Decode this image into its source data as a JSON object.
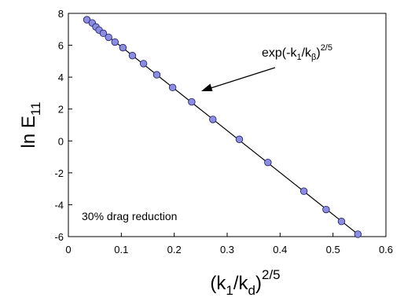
{
  "chart_data": {
    "type": "scatter",
    "xlim": [
      0,
      0.6
    ],
    "ylim": [
      -6,
      8
    ],
    "x_ticks": [
      "0",
      "0.1",
      "0.2",
      "0.3",
      "0.4",
      "0.5",
      "0.6"
    ],
    "y_ticks": [
      "8",
      "6",
      "4",
      "2",
      "0",
      "-2",
      "-4",
      "-6"
    ],
    "xlabel": {
      "main": "(k",
      "sub1": "1",
      "mid": "/k",
      "sub2": "d",
      "close": ")",
      "sup": "2/5"
    },
    "ylabel": {
      "main": "ln E",
      "sub": "11"
    },
    "annotation": {
      "main": "exp(-k",
      "sub1": "1",
      "mid": "/k",
      "sub2": "β",
      "close": ")",
      "sup": "2/5"
    },
    "note": "30% drag reduction",
    "grid": false,
    "marker_color": "#8c8ce0",
    "line_color": "#000000",
    "series": [
      {
        "x": [
          0.035,
          0.045,
          0.052,
          0.058,
          0.066,
          0.076,
          0.088,
          0.103,
          0.121,
          0.142,
          0.167,
          0.197,
          0.233,
          0.273,
          0.323,
          0.377,
          0.445,
          0.487,
          0.516,
          0.547
        ],
        "values": [
          7.6,
          7.4,
          7.15,
          6.95,
          6.75,
          6.5,
          6.2,
          5.85,
          5.35,
          4.85,
          4.15,
          3.35,
          2.45,
          1.35,
          0.1,
          -1.35,
          -3.15,
          -4.3,
          -5.05,
          -5.85
        ]
      }
    ],
    "fit_line": {
      "x": [
        0.035,
        0.547
      ],
      "y": [
        7.62,
        -5.85
      ]
    }
  }
}
